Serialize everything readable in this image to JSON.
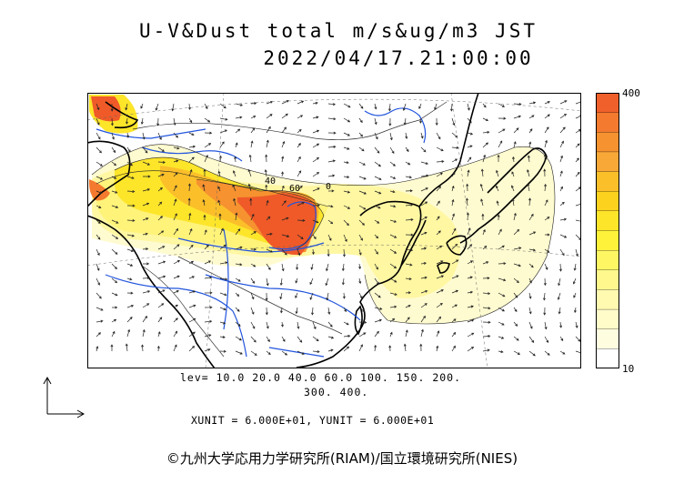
{
  "header": {
    "title": "U-V&Dust total m/s&ug/m3 JST",
    "datetime": "2022/04/17.21:00:00"
  },
  "colorbar": {
    "max_label": "400",
    "min_label": "10",
    "colors": [
      "#f0602a",
      "#f37a2e",
      "#f6922f",
      "#f8a836",
      "#fbbf2a",
      "#fdd21e",
      "#fde52a",
      "#fef23a",
      "#fff664",
      "#fff88d",
      "#fffab0",
      "#fffcca",
      "#fffde0",
      "#ffffff"
    ]
  },
  "levels": {
    "line1": "lev= 10.0 20.0 40.0 60.0 100. 150. 200.",
    "line2": "300. 400."
  },
  "units": {
    "text": "XUNIT = 6.000E+01, YUNIT = 6.000E+01"
  },
  "map": {
    "field": "surface dust concentration and wind vectors",
    "contour_labels": [
      "40",
      "60",
      "0"
    ],
    "colors": {
      "coast": "#000000",
      "river": "#2255dd",
      "dust_peak": "#ef5a28"
    }
  },
  "footer": {
    "copyright": "©九州大学応用力学研究所(RIAM)/国立環境研究所(NIES)"
  }
}
